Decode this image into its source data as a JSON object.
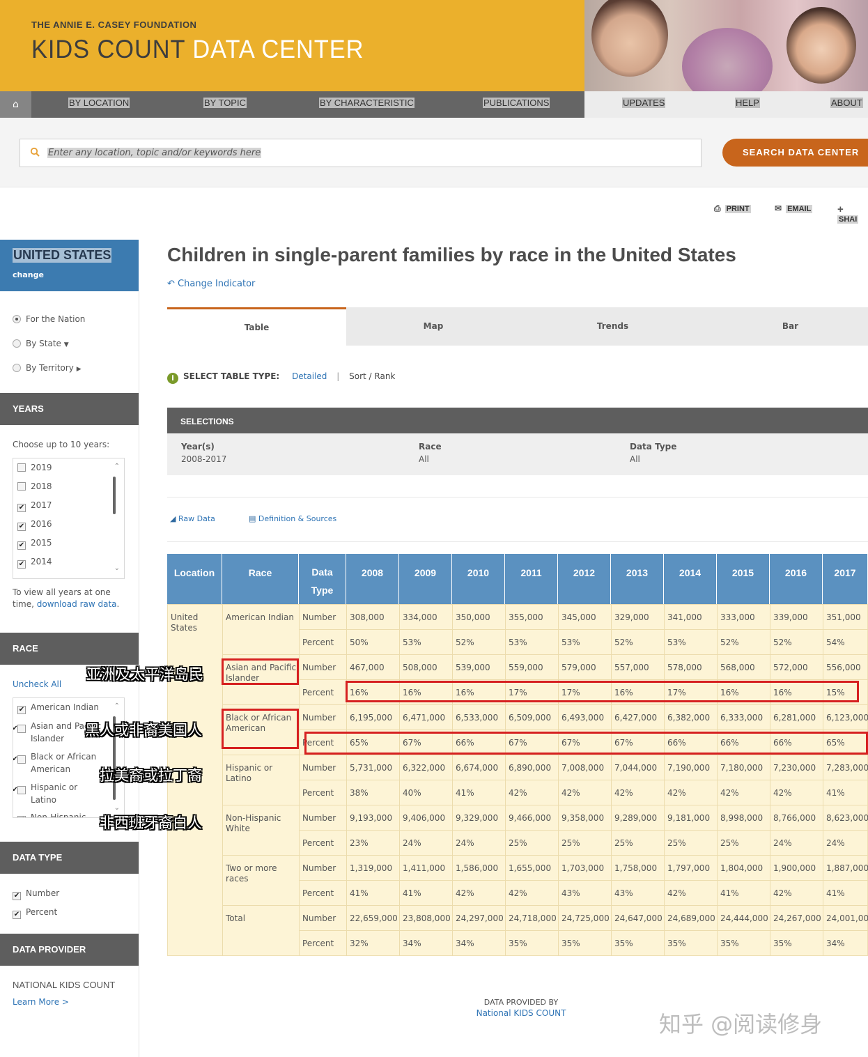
{
  "header": {
    "org": "THE ANNIE E. CASEY FOUNDATION",
    "brand_a": "KIDS COUNT",
    "brand_b": "DATA CENTER",
    "accent": "#ebb02c"
  },
  "nav": {
    "home_icon": "home-icon",
    "items": [
      "BY LOCATION",
      "BY TOPIC",
      "BY CHARACTERISTIC",
      "PUBLICATIONS",
      "UPDATES",
      "HELP",
      "ABOUT"
    ]
  },
  "search": {
    "placeholder": "Enter any location, topic and/or keywords here",
    "button": "SEARCH DATA CENTER",
    "button_color": "#c8651c"
  },
  "tools": {
    "print": "PRINT",
    "email": "EMAIL",
    "share": "SHAI"
  },
  "sidebar": {
    "location": "UNITED STATES",
    "change": "change",
    "scope": [
      "For the Nation",
      "By State",
      "By Territory"
    ],
    "years_head": "YEARS",
    "years_hint": "Choose up to 10 years:",
    "years": [
      {
        "label": "2019",
        "checked": false
      },
      {
        "label": "2018",
        "checked": false
      },
      {
        "label": "2017",
        "checked": true
      },
      {
        "label": "2016",
        "checked": true
      },
      {
        "label": "2015",
        "checked": true
      },
      {
        "label": "2014",
        "checked": true
      }
    ],
    "years_note_a": "To view all years at one",
    "years_note_b": "time, ",
    "years_note_link": "download raw data",
    "race_head": "RACE",
    "uncheck_all": "Uncheck All",
    "races": [
      "American Indian",
      "Asian and Pacific Islander",
      "Black or African American",
      "Hispanic or Latino",
      "Non-Hispanic"
    ],
    "datatype_head": "DATA TYPE",
    "datatypes": [
      "Number",
      "Percent"
    ],
    "provider_head": "DATA PROVIDER",
    "provider": "NATIONAL KIDS COUNT",
    "learn_more": "Learn More >"
  },
  "main": {
    "title": "Children in single-parent families by race in the United States",
    "change_indicator": "Change Indicator",
    "tabs": [
      "Table",
      "Map",
      "Trends",
      "Bar"
    ],
    "select_type_label": "SELECT TABLE TYPE:",
    "detailed": "Detailed",
    "sort_rank": "Sort / Rank",
    "selections_head": "SELECTIONS",
    "selections": [
      {
        "key": "Year(s)",
        "value": "2008-2017"
      },
      {
        "key": "Race",
        "value": "All"
      },
      {
        "key": "Data Type",
        "value": "All"
      }
    ],
    "raw_data": "Raw Data",
    "definitions": "Definition & Sources"
  },
  "table": {
    "headers": [
      "Location",
      "Race",
      "Data Type",
      "2008",
      "2009",
      "2010",
      "2011",
      "2012",
      "2013",
      "2014",
      "2015",
      "2016",
      "2017"
    ],
    "location_a": "United",
    "location_b": "States",
    "groups": [
      {
        "race": [
          "American Indian"
        ],
        "number": [
          "308,000",
          "334,000",
          "350,000",
          "355,000",
          "345,000",
          "329,000",
          "341,000",
          "333,000",
          "339,000",
          "351,000"
        ],
        "percent": [
          "50%",
          "53%",
          "52%",
          "53%",
          "53%",
          "52%",
          "53%",
          "52%",
          "52%",
          "54%"
        ]
      },
      {
        "race": [
          "Asian and Pacific",
          "Islander"
        ],
        "number": [
          "467,000",
          "508,000",
          "539,000",
          "559,000",
          "579,000",
          "557,000",
          "578,000",
          "568,000",
          "572,000",
          "556,000"
        ],
        "percent": [
          "16%",
          "16%",
          "16%",
          "17%",
          "17%",
          "16%",
          "17%",
          "16%",
          "16%",
          "15%"
        ]
      },
      {
        "race": [
          "Black or African",
          "American"
        ],
        "number": [
          "6,195,000",
          "6,471,000",
          "6,533,000",
          "6,509,000",
          "6,493,000",
          "6,427,000",
          "6,382,000",
          "6,333,000",
          "6,281,000",
          "6,123,000"
        ],
        "percent": [
          "65%",
          "67%",
          "66%",
          "67%",
          "67%",
          "67%",
          "66%",
          "66%",
          "66%",
          "65%"
        ]
      },
      {
        "race": [
          "Hispanic or",
          "Latino"
        ],
        "number": [
          "5,731,000",
          "6,322,000",
          "6,674,000",
          "6,890,000",
          "7,008,000",
          "7,044,000",
          "7,190,000",
          "7,180,000",
          "7,230,000",
          "7,283,000"
        ],
        "percent": [
          "38%",
          "40%",
          "41%",
          "42%",
          "42%",
          "42%",
          "42%",
          "42%",
          "42%",
          "41%"
        ]
      },
      {
        "race": [
          "Non-Hispanic",
          "White"
        ],
        "number": [
          "9,193,000",
          "9,406,000",
          "9,329,000",
          "9,466,000",
          "9,358,000",
          "9,289,000",
          "9,181,000",
          "8,998,000",
          "8,766,000",
          "8,623,000"
        ],
        "percent": [
          "23%",
          "24%",
          "24%",
          "25%",
          "25%",
          "25%",
          "25%",
          "25%",
          "24%",
          "24%"
        ]
      },
      {
        "race": [
          "Two or more",
          "races"
        ],
        "number": [
          "1,319,000",
          "1,411,000",
          "1,586,000",
          "1,655,000",
          "1,703,000",
          "1,758,000",
          "1,797,000",
          "1,804,000",
          "1,900,000",
          "1,887,000"
        ],
        "percent": [
          "41%",
          "41%",
          "42%",
          "42%",
          "43%",
          "43%",
          "42%",
          "41%",
          "42%",
          "41%"
        ]
      },
      {
        "race": [
          "Total"
        ],
        "number": [
          "22,659,000",
          "23,808,000",
          "24,297,000",
          "24,718,000",
          "24,725,000",
          "24,647,000",
          "24,689,000",
          "24,444,000",
          "24,267,000",
          "24,001,000"
        ],
        "percent": [
          "32%",
          "34%",
          "34%",
          "35%",
          "35%",
          "35%",
          "35%",
          "35%",
          "35%",
          "34%"
        ]
      }
    ],
    "type_number": "Number",
    "type_percent": "Percent"
  },
  "annotations": [
    "亚洲及太平洋岛民",
    "黑人或非裔美国人",
    "拉美裔或拉丁裔",
    "非西班牙裔白人"
  ],
  "footer": {
    "provided_by": "DATA PROVIDED BY",
    "provider_link": "National KIDS COUNT"
  },
  "watermark": "知乎 @阅读修身"
}
